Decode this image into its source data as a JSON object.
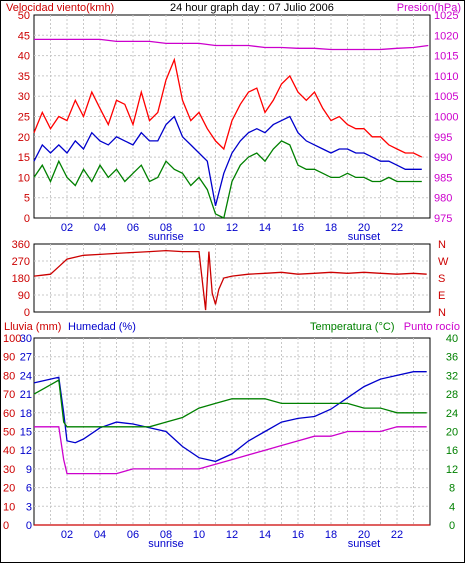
{
  "chart_data": [
    {
      "type": "line",
      "title": "24 hour graph day : 07 Julio 2006",
      "left_label": "Velocidad viento(kmh)",
      "right_label": "Presión(hPa)",
      "x_ticks": [
        "02",
        "04",
        "06",
        "08",
        "10",
        "12",
        "14",
        "16",
        "18",
        "20",
        "22"
      ],
      "x_markers": [
        {
          "label": "sunrise",
          "x": 8
        },
        {
          "label": "sunset",
          "x": 20
        }
      ],
      "xlim": [
        0,
        24
      ],
      "ylim_left": [
        0,
        50
      ],
      "y_ticks_left": [
        "0",
        "5",
        "10",
        "15",
        "20",
        "25",
        "30",
        "35",
        "40",
        "45",
        "50"
      ],
      "ylim_right": [
        975,
        1025
      ],
      "y_ticks_right": [
        "975",
        "980",
        "985",
        "990",
        "995",
        "1000",
        "1005",
        "1010",
        "1015",
        "1020",
        "1025"
      ],
      "colors": {
        "gust": "#ff0000",
        "average": "#0000cc",
        "min": "#008000",
        "pressure": "#cc00cc"
      },
      "series": [
        {
          "key": "gust",
          "axis": "left",
          "color": "#ff0000",
          "x": [
            0,
            0.5,
            1,
            1.5,
            2,
            2.5,
            3,
            3.5,
            4,
            4.5,
            5,
            5.5,
            6,
            6.5,
            7,
            7.5,
            8,
            8.5,
            9,
            9.5,
            10,
            10.5,
            11,
            11.5,
            12,
            12.5,
            13,
            13.5,
            14,
            14.5,
            15,
            15.5,
            16,
            16.5,
            17,
            17.5,
            18,
            18.5,
            19,
            19.5,
            20,
            20.5,
            21,
            21.5,
            22,
            22.5,
            23,
            23.5
          ],
          "values": [
            21,
            26,
            22,
            25,
            24,
            29,
            25,
            31,
            27,
            23,
            29,
            28,
            23,
            31,
            24,
            26,
            34,
            39,
            29,
            24,
            26,
            22,
            19,
            17,
            24,
            28,
            31,
            32,
            26,
            29,
            33,
            35,
            31,
            29,
            31,
            27,
            24,
            25,
            23,
            22,
            22,
            20,
            20,
            18,
            17,
            16,
            16,
            15
          ]
        },
        {
          "key": "average",
          "axis": "left",
          "color": "#0000cc",
          "x": [
            0,
            0.5,
            1,
            1.5,
            2,
            2.5,
            3,
            3.5,
            4,
            4.5,
            5,
            5.5,
            6,
            6.5,
            7,
            7.5,
            8,
            8.5,
            9,
            9.5,
            10,
            10.5,
            11,
            11.5,
            12,
            12.5,
            13,
            13.5,
            14,
            14.5,
            15,
            15.5,
            16,
            16.5,
            17,
            17.5,
            18,
            18.5,
            19,
            19.5,
            20,
            20.5,
            21,
            21.5,
            22,
            22.5,
            23,
            23.5
          ],
          "values": [
            14,
            18,
            16,
            18,
            16,
            19,
            17,
            21,
            19,
            18,
            20,
            19,
            18,
            21,
            19,
            19,
            23,
            25,
            20,
            18,
            16,
            14,
            3,
            11,
            16,
            19,
            21,
            22,
            21,
            23,
            24,
            25,
            21,
            19,
            18,
            17,
            16,
            17,
            17,
            16,
            16,
            15,
            14,
            14,
            13,
            12,
            12,
            12
          ]
        },
        {
          "key": "min",
          "axis": "left",
          "color": "#008000",
          "x": [
            0,
            0.5,
            1,
            1.5,
            2,
            2.5,
            3,
            3.5,
            4,
            4.5,
            5,
            5.5,
            6,
            6.5,
            7,
            7.5,
            8,
            8.5,
            9,
            9.5,
            10,
            10.5,
            11,
            11.5,
            12,
            12.5,
            13,
            13.5,
            14,
            14.5,
            15,
            15.5,
            16,
            16.5,
            17,
            17.5,
            18,
            18.5,
            19,
            19.5,
            20,
            20.5,
            21,
            21.5,
            22,
            22.5,
            23,
            23.5
          ],
          "values": [
            10,
            13,
            9,
            14,
            10,
            8,
            12,
            9,
            13,
            10,
            12,
            9,
            11,
            13,
            9,
            10,
            14,
            12,
            11,
            8,
            10,
            7,
            1,
            0,
            9,
            13,
            15,
            16,
            14,
            17,
            19,
            18,
            13,
            12,
            12,
            11,
            10,
            10,
            11,
            10,
            10,
            9,
            9,
            10,
            9,
            9,
            9,
            9
          ]
        },
        {
          "key": "pressure",
          "axis": "right",
          "color": "#cc00cc",
          "x": [
            0,
            1,
            2,
            3,
            4,
            5,
            6,
            7,
            8,
            9,
            10,
            11,
            12,
            13,
            14,
            15,
            16,
            17,
            18,
            19,
            20,
            21,
            22,
            23,
            23.9
          ],
          "values": [
            1019,
            1019,
            1019,
            1019,
            1019,
            1018.5,
            1018.5,
            1018.5,
            1018,
            1018,
            1018,
            1017.5,
            1017.5,
            1017.5,
            1017,
            1017,
            1016.8,
            1016.8,
            1016.5,
            1016.5,
            1016.5,
            1016.5,
            1016.8,
            1017,
            1017.5
          ]
        }
      ]
    },
    {
      "type": "line",
      "title": "",
      "y_ticks": [
        "0",
        "90",
        "180",
        "270",
        "360"
      ],
      "ylim": [
        0,
        360
      ],
      "compass_labels": [
        "N",
        "W",
        "S",
        "E",
        "N"
      ],
      "xlim": [
        0,
        24
      ],
      "series": [
        {
          "key": "direction",
          "color": "#cc0000",
          "x": [
            0,
            0.5,
            1,
            1.5,
            2,
            3,
            4,
            5,
            6,
            7,
            8,
            9,
            10,
            10.4,
            10.6,
            10.8,
            11,
            11.2,
            11.5,
            12,
            13,
            14,
            15,
            16,
            17,
            18,
            19,
            20,
            21,
            22,
            23,
            23.8
          ],
          "values": [
            190,
            195,
            200,
            240,
            280,
            300,
            305,
            310,
            315,
            320,
            325,
            320,
            320,
            10,
            320,
            100,
            40,
            120,
            180,
            190,
            200,
            205,
            210,
            200,
            205,
            210,
            205,
            210,
            205,
            200,
            205,
            200
          ]
        }
      ]
    },
    {
      "type": "line",
      "left_label": "Lluvia (mm)",
      "left2_label": "Humedad (%)",
      "right_label": "Temperatura (°C)",
      "right2_label": "Punto rocío",
      "x_ticks": [
        "02",
        "04",
        "06",
        "08",
        "10",
        "12",
        "14",
        "16",
        "18",
        "20",
        "22"
      ],
      "x_markers": [
        {
          "label": "sunrise",
          "x": 8
        },
        {
          "label": "sunset",
          "x": 20
        }
      ],
      "xlim": [
        0,
        24
      ],
      "ylim_rain": [
        0,
        30
      ],
      "y_ticks_rain": [
        "0",
        "3",
        "6",
        "9",
        "12",
        "15",
        "18",
        "21",
        "24",
        "27",
        "30"
      ],
      "ylim_humidity": [
        0,
        100
      ],
      "y_ticks_humidity": [
        "0",
        "10",
        "20",
        "30",
        "40",
        "50",
        "60",
        "70",
        "80",
        "90",
        "100"
      ],
      "ylim_temp": [
        0,
        40
      ],
      "y_ticks_temp": [
        "0",
        "4",
        "8",
        "12",
        "16",
        "20",
        "24",
        "28",
        "32",
        "36",
        "40"
      ],
      "series": [
        {
          "key": "humidity",
          "axis": "humidity",
          "color": "#0000cc",
          "x": [
            0,
            0.5,
            1,
            1.5,
            1.8,
            2,
            2.5,
            3,
            4,
            5,
            6,
            7,
            8,
            9,
            10,
            11,
            12,
            13,
            14,
            15,
            16,
            17,
            18,
            19,
            20,
            21,
            22,
            23,
            23.8
          ],
          "values": [
            76,
            77,
            78,
            79,
            60,
            45,
            44,
            46,
            52,
            55,
            54,
            52,
            50,
            42,
            36,
            34,
            38,
            45,
            50,
            55,
            57,
            58,
            62,
            68,
            74,
            78,
            80,
            82,
            82
          ]
        },
        {
          "key": "temperature",
          "axis": "temp",
          "color": "#008000",
          "x": [
            0,
            0.5,
            1,
            1.5,
            1.8,
            2,
            2.5,
            3,
            4,
            5,
            6,
            7,
            8,
            9,
            10,
            11,
            12,
            13,
            14,
            15,
            16,
            17,
            18,
            19,
            20,
            21,
            22,
            23,
            23.8
          ],
          "values": [
            28,
            29,
            30,
            31,
            22,
            21,
            21,
            21,
            21,
            21,
            21,
            21,
            22,
            23,
            25,
            26,
            27,
            27,
            27,
            26,
            26,
            26,
            26,
            26,
            25,
            25,
            24,
            24,
            24
          ]
        },
        {
          "key": "dewpoint",
          "axis": "temp",
          "color": "#cc00cc",
          "x": [
            0,
            0.5,
            1,
            1.5,
            1.8,
            2,
            2.5,
            3,
            4,
            5,
            6,
            7,
            8,
            9,
            10,
            11,
            12,
            13,
            14,
            15,
            16,
            17,
            18,
            19,
            20,
            21,
            22,
            23,
            23.8
          ],
          "values": [
            21,
            21,
            21,
            21,
            14,
            11,
            11,
            11,
            11,
            11,
            12,
            12,
            12,
            12,
            12,
            13,
            14,
            15,
            16,
            17,
            18,
            19,
            19,
            20,
            20,
            20,
            21,
            21,
            21
          ]
        },
        {
          "key": "rain",
          "axis": "rain",
          "color": "#cc0000",
          "x": [
            0,
            24
          ],
          "values": [
            0,
            0
          ]
        }
      ]
    }
  ]
}
